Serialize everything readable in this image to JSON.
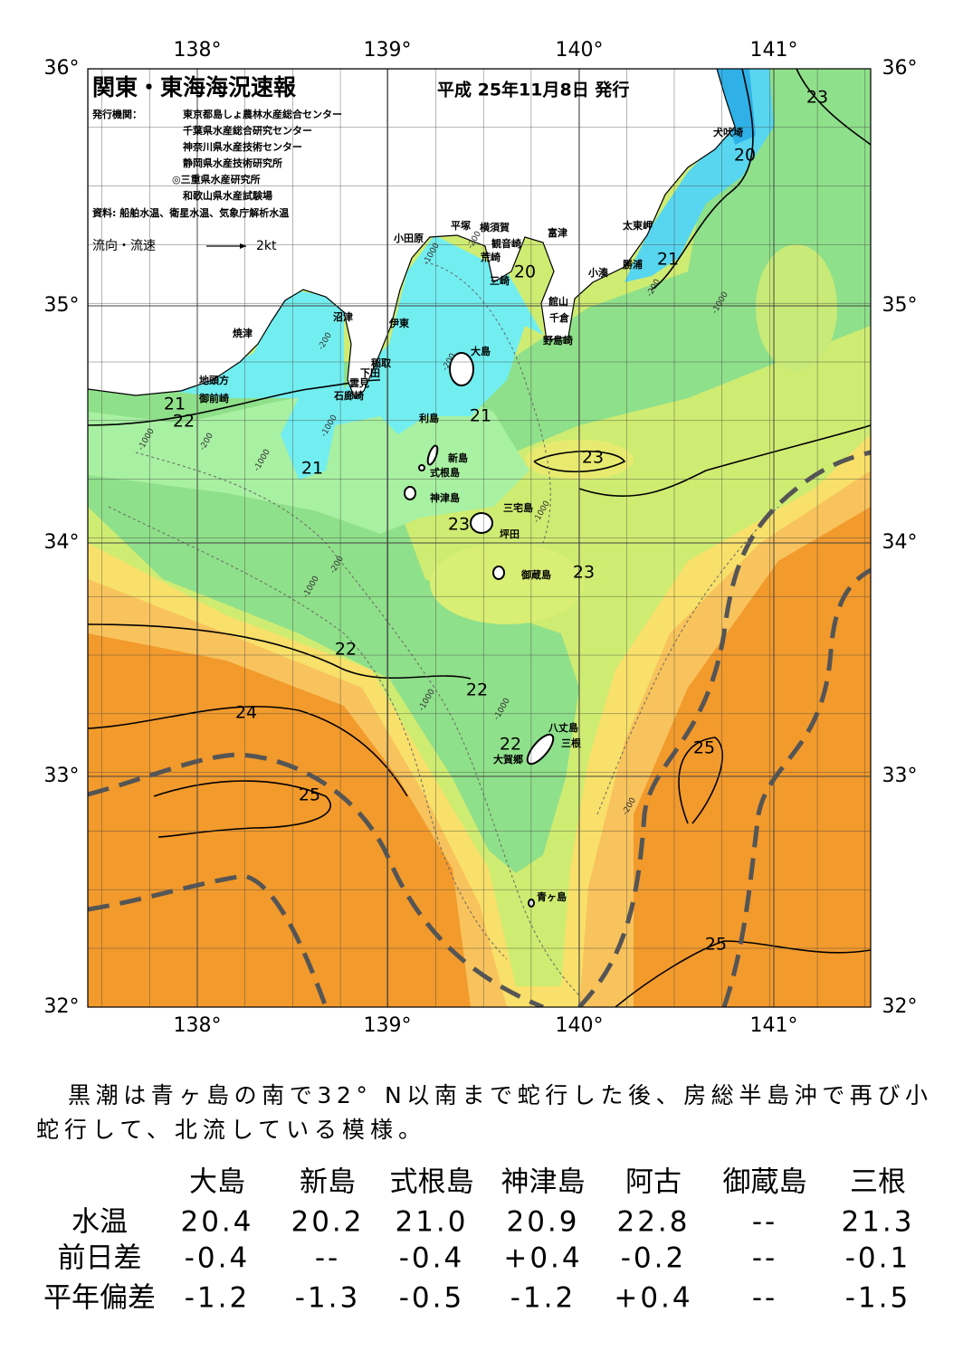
{
  "header": {
    "title": "関東・東海海況速報",
    "date": "平成 25年11月8日 発行",
    "publisher_label": "発行機関：",
    "publishers": [
      "東京都島しょ農林水産総合センター",
      "千葉県水産総合研究センター",
      "神奈川県水産技術センター",
      "静岡県水産技術研究所",
      "◎三重県水産研究所",
      "和歌山県水産試験場"
    ],
    "source": "資料: 船舶水温、衛星水温、気象庁解析水温",
    "flow_label": "流向・流速",
    "flow_scale": "2kt"
  },
  "map": {
    "lon_labels": [
      "138°",
      "139°",
      "140°",
      "141°"
    ],
    "lat_labels": [
      "36°",
      "35°",
      "34°",
      "33°",
      "32°"
    ],
    "places": [
      "犬吠埼",
      "太東岬",
      "勝浦",
      "小湊",
      "館山",
      "千倉",
      "野島崎",
      "富津",
      "横須賀",
      "観音崎",
      "荒崎",
      "三崎",
      "平塚",
      "小田原",
      "沼津",
      "伊東",
      "焼津",
      "稲取",
      "下田",
      "雲見",
      "石廊崎",
      "地頭方",
      "御前崎",
      "大島",
      "利島",
      "新島",
      "式根島",
      "神津島",
      "三宅島",
      "坪田",
      "御蔵島",
      "八丈島",
      "三根",
      "大賀郷",
      "青ヶ島"
    ],
    "isotherm_labels": [
      "23",
      "20",
      "21",
      "20",
      "21",
      "22",
      "21",
      "21",
      "23",
      "23",
      "23",
      "22",
      "22",
      "24",
      "22",
      "25",
      "25",
      "25"
    ],
    "depth_labels": [
      "-200",
      "-1000",
      "-1000",
      "-200",
      "-200",
      "-200",
      "-1000",
      "-1000",
      "-200",
      "-1000",
      "-200",
      "-1000",
      "-1000",
      "-1000",
      "-1000",
      "-200"
    ]
  },
  "summary": [
    "黒潮は青ヶ島の南で32° N以南まで蛇行した後、房総半島沖で再び小",
    "蛇行して、北流している模様。"
  ],
  "table": {
    "columns": [
      "大島",
      "新島",
      "式根島",
      "神津島",
      "阿古",
      "御蔵島",
      "三根"
    ],
    "rows": [
      {
        "label": "水温",
        "values": [
          "20.4",
          "20.2",
          "21.0",
          "20.9",
          "22.8",
          "--",
          "21.3"
        ]
      },
      {
        "label": "前日差",
        "values": [
          "-0.4",
          "--",
          "-0.4",
          "+0.4",
          "-0.2",
          "--",
          "-0.1"
        ]
      },
      {
        "label": "平年偏差",
        "values": [
          "-1.2",
          "-1.3",
          "-0.5",
          "-1.2",
          "+0.4",
          "--",
          "-1.5"
        ]
      }
    ]
  }
}
